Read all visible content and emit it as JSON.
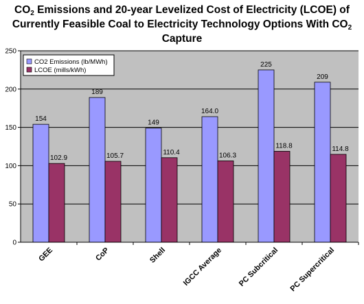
{
  "title": {
    "line1_a": "CO",
    "line1_sub": "2",
    "line1_b": " Emissions and 20-year Levelized Cost of Electricity (LCOE) of",
    "line2_a": "Currently Feasible Coal to Electricity Technology Options With CO",
    "line2_sub": "2",
    "line3": "Capture"
  },
  "chart_data": {
    "type": "bar",
    "categories": [
      "GEE",
      "CoP",
      "Shell",
      "IGCC Average",
      "PC Subcritical",
      "PC Supercritical"
    ],
    "series": [
      {
        "name": "CO2 Emissions (lb/MWh)",
        "color": "#9999ff",
        "values": [
          154,
          189,
          149,
          164.0,
          225,
          209
        ],
        "labels": [
          "154",
          "189",
          "149",
          "164.0",
          "225",
          "209"
        ]
      },
      {
        "name": "LCOE (mills/kWh)",
        "color": "#993366",
        "values": [
          102.9,
          105.7,
          110.4,
          106.3,
          118.8,
          114.8
        ],
        "labels": [
          "102.9",
          "105.7",
          "110.4",
          "106.3",
          "118.8",
          "114.8"
        ]
      }
    ],
    "ylim": [
      0,
      250
    ],
    "yticks": [
      "0",
      "50",
      "100",
      "150",
      "200",
      "250"
    ],
    "grid": true,
    "legend_position": "top-left",
    "plot_background": "#c0c0c0"
  }
}
